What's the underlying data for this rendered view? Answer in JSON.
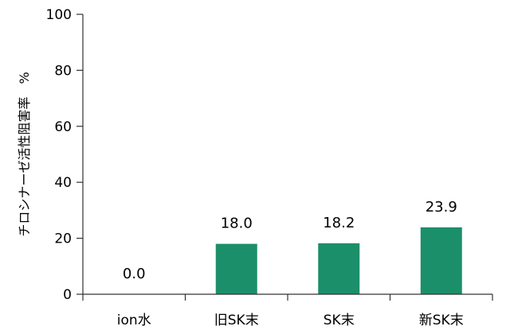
{
  "chart_data": {
    "type": "bar",
    "categories": [
      "ion水",
      "旧SK末",
      "SK末",
      "新SK末"
    ],
    "values": [
      0.0,
      18.0,
      18.2,
      23.9
    ],
    "value_labels": [
      "0.0",
      "18.0",
      "18.2",
      "23.9"
    ],
    "ylabel": "チロシナーゼ活性阻害率　%",
    "xlabel": "",
    "ylim": [
      0,
      100
    ],
    "yticks": [
      0,
      20,
      40,
      60,
      80,
      100
    ],
    "grid": false,
    "bar_color": "#1b8f69"
  }
}
